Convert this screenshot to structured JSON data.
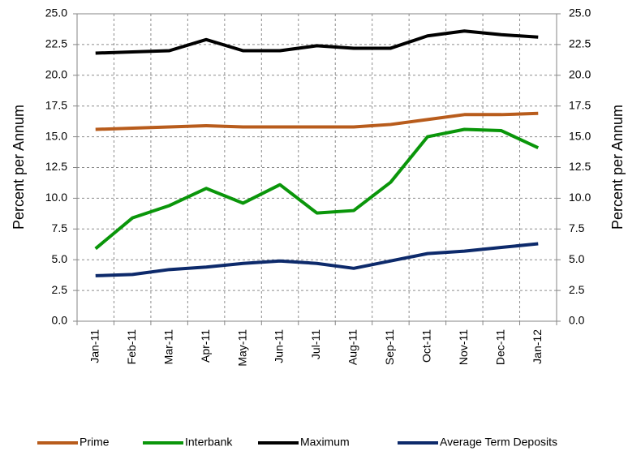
{
  "chart_data": {
    "type": "line",
    "categories": [
      "Jan-11",
      "Feb-11",
      "Mar-11",
      "Apr-11",
      "May-11",
      "Jun-11",
      "Jul-11",
      "Aug-11",
      "Sep-11",
      "Oct-11",
      "Nov-11",
      "Dec-11",
      "Jan-12"
    ],
    "series": [
      {
        "name": "Prime",
        "color": "#b85c1c",
        "values": [
          15.6,
          15.7,
          15.8,
          15.9,
          15.8,
          15.8,
          15.8,
          15.8,
          16.0,
          16.4,
          16.8,
          16.8,
          16.9
        ]
      },
      {
        "name": "Interbank",
        "color": "#0a960a",
        "values": [
          5.9,
          8.4,
          9.4,
          10.8,
          9.6,
          11.1,
          8.8,
          9.0,
          11.3,
          15.0,
          15.6,
          15.5,
          14.1
        ]
      },
      {
        "name": "Maximum",
        "color": "#000000",
        "values": [
          21.8,
          21.9,
          22.0,
          22.9,
          22.0,
          22.0,
          22.4,
          22.2,
          22.2,
          23.2,
          23.6,
          23.3,
          23.1
        ]
      },
      {
        "name": "Average Term Deposits",
        "color": "#0d2a6b",
        "values": [
          3.7,
          3.8,
          4.2,
          4.4,
          4.7,
          4.9,
          4.7,
          4.3,
          4.9,
          5.5,
          5.7,
          6.0,
          6.3
        ]
      }
    ],
    "ylabel": "Percent per Annum",
    "y2label": "Percent per Annum",
    "ylim": [
      0,
      25
    ],
    "yticks": [
      {
        "value": 0,
        "label": "0.0"
      },
      2.5,
      {
        "value": 5,
        "label": "5.0"
      },
      7.5,
      {
        "value": 10,
        "label": "10.0"
      },
      12.5,
      {
        "value": 15,
        "label": "15.0"
      },
      17.5,
      {
        "value": 20,
        "label": "20.0"
      },
      22.5,
      {
        "value": 25,
        "label": "25.0"
      }
    ],
    "y2lim": [
      0,
      25
    ],
    "y2ticks": [
      {
        "value": 0,
        "label": "0.0"
      },
      2.5,
      {
        "value": 5,
        "label": "5.0"
      },
      7.5,
      {
        "value": 10,
        "label": "10.0"
      },
      12.5,
      {
        "value": 15,
        "label": "15.0"
      },
      17.5,
      {
        "value": 20,
        "label": "20.0"
      },
      22.5,
      {
        "value": 25,
        "label": "25.0"
      }
    ],
    "grid": true,
    "legend": "bottom"
  }
}
